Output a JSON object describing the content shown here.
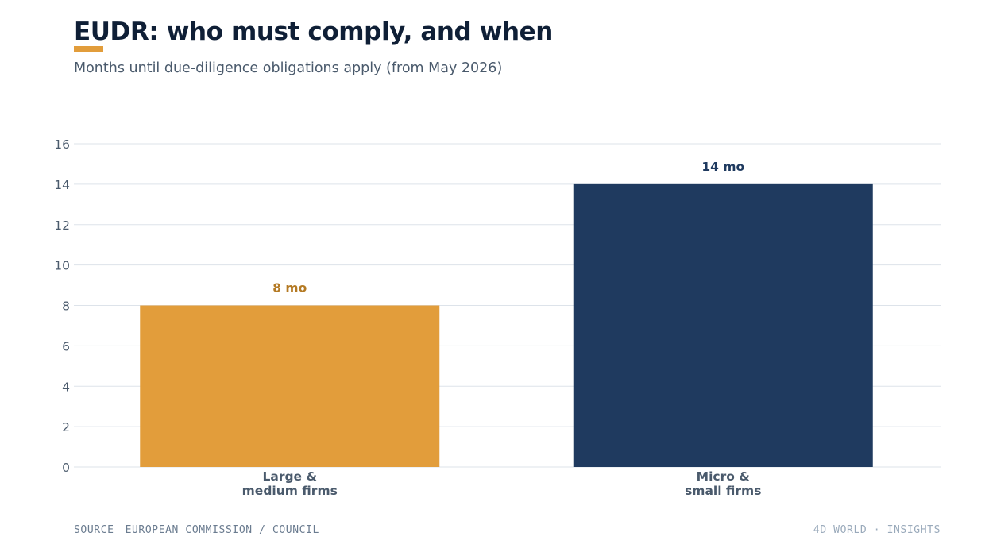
{
  "header": {
    "title": "EUDR: who must comply, and when",
    "subtitle": "Months until due-diligence obligations apply (from May 2026)"
  },
  "footer": {
    "source_label": "SOURCE",
    "source_text": "EUROPEAN COMMISSION / COUNCIL",
    "brand": "4D WORLD · INSIGHTS"
  },
  "colors": {
    "accent": "#e29d3b",
    "accent_label": "#b47a24",
    "navy": "#1f3a5f",
    "grid": "#dde3ea",
    "axis_text": "#4a5a6c"
  },
  "chart_data": {
    "type": "bar",
    "categories": [
      "Large & medium firms",
      "Micro & small firms"
    ],
    "category_lines": [
      [
        "Large &",
        "medium firms"
      ],
      [
        "Micro &",
        "small firms"
      ]
    ],
    "values": [
      8,
      14
    ],
    "data_labels": [
      "8 mo",
      "14 mo"
    ],
    "bar_colors": [
      "#e29d3b",
      "#1f3a5f"
    ],
    "label_colors": [
      "#b47a24",
      "#1f3a5f"
    ],
    "ylim": [
      0,
      16
    ],
    "yticks": [
      0,
      2,
      4,
      6,
      8,
      10,
      12,
      14,
      16
    ],
    "grid": true,
    "xlabel": "",
    "ylabel": ""
  }
}
